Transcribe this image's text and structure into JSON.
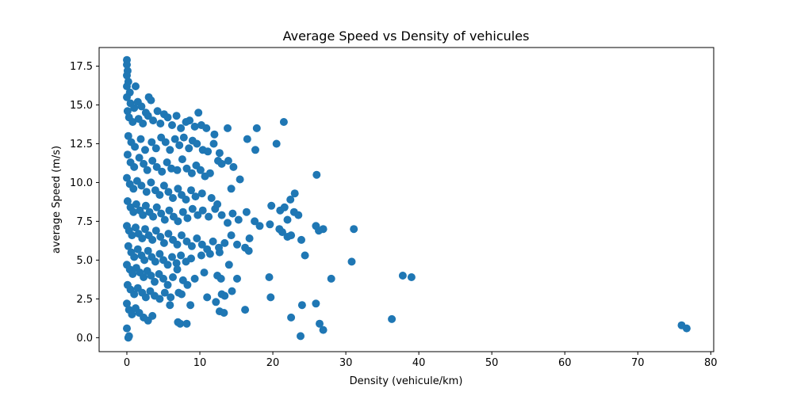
{
  "chart_data": {
    "type": "scatter",
    "title": "Average Speed vs Density of vehicules",
    "xlabel": "Density (vehicule/km)",
    "ylabel": "average Speed (m/s)",
    "xlim": [
      -3.8,
      80.4
    ],
    "ylim": [
      -0.9,
      18.7
    ],
    "x_ticks": [
      0,
      10,
      20,
      30,
      40,
      50,
      60,
      70,
      80
    ],
    "x_tick_labels": [
      "0",
      "10",
      "20",
      "30",
      "40",
      "50",
      "60",
      "70",
      "80"
    ],
    "y_ticks": [
      0.0,
      2.5,
      5.0,
      7.5,
      10.0,
      12.5,
      15.0,
      17.5
    ],
    "y_tick_labels": [
      "0.0",
      "2.5",
      "5.0",
      "7.5",
      "10.0",
      "12.5",
      "15.0",
      "17.5"
    ],
    "grid": false,
    "marker_color": "#1f77b4",
    "points": [
      [
        0.0,
        17.9
      ],
      [
        0.0,
        17.6
      ],
      [
        0.1,
        17.2
      ],
      [
        0.0,
        16.9
      ],
      [
        0.2,
        16.5
      ],
      [
        0.0,
        16.2
      ],
      [
        0.4,
        15.8
      ],
      [
        1.2,
        16.2
      ],
      [
        0.0,
        15.5
      ],
      [
        0.5,
        15.1
      ],
      [
        1.0,
        14.8
      ],
      [
        1.5,
        15.2
      ],
      [
        2.0,
        14.9
      ],
      [
        2.6,
        14.5
      ],
      [
        3.0,
        15.5
      ],
      [
        3.3,
        15.3
      ],
      [
        0.1,
        14.6
      ],
      [
        0.3,
        14.2
      ],
      [
        0.8,
        13.9
      ],
      [
        1.6,
        14.1
      ],
      [
        2.2,
        13.8
      ],
      [
        2.9,
        14.3
      ],
      [
        3.6,
        14.0
      ],
      [
        4.2,
        14.6
      ],
      [
        4.6,
        13.8
      ],
      [
        5.1,
        14.4
      ],
      [
        5.6,
        14.2
      ],
      [
        6.2,
        13.7
      ],
      [
        6.8,
        14.3
      ],
      [
        7.4,
        13.5
      ],
      [
        8.1,
        13.9
      ],
      [
        8.6,
        14.0
      ],
      [
        9.3,
        13.6
      ],
      [
        9.8,
        14.5
      ],
      [
        10.2,
        13.7
      ],
      [
        10.9,
        13.5
      ],
      [
        12.0,
        13.1
      ],
      [
        13.8,
        13.5
      ],
      [
        17.8,
        13.5
      ],
      [
        21.5,
        13.9
      ],
      [
        16.5,
        12.8
      ],
      [
        17.6,
        12.1
      ],
      [
        20.5,
        12.5
      ],
      [
        0.2,
        13.0
      ],
      [
        0.6,
        12.6
      ],
      [
        1.1,
        12.3
      ],
      [
        1.9,
        12.8
      ],
      [
        2.5,
        12.1
      ],
      [
        3.4,
        12.6
      ],
      [
        4.0,
        12.2
      ],
      [
        4.7,
        12.9
      ],
      [
        5.3,
        12.6
      ],
      [
        5.9,
        12.1
      ],
      [
        6.6,
        12.8
      ],
      [
        7.2,
        12.4
      ],
      [
        7.8,
        12.9
      ],
      [
        8.5,
        12.2
      ],
      [
        9.0,
        12.7
      ],
      [
        9.6,
        12.5
      ],
      [
        10.4,
        12.1
      ],
      [
        11.1,
        12.0
      ],
      [
        11.9,
        12.5
      ],
      [
        12.7,
        11.9
      ],
      [
        0.1,
        11.8
      ],
      [
        0.5,
        11.3
      ],
      [
        1.0,
        11.0
      ],
      [
        1.7,
        11.6
      ],
      [
        2.3,
        11.2
      ],
      [
        2.8,
        10.8
      ],
      [
        3.5,
        11.4
      ],
      [
        4.1,
        11.0
      ],
      [
        4.8,
        10.7
      ],
      [
        5.5,
        11.3
      ],
      [
        6.1,
        10.9
      ],
      [
        6.9,
        10.8
      ],
      [
        7.6,
        11.5
      ],
      [
        8.2,
        10.9
      ],
      [
        8.9,
        10.6
      ],
      [
        9.5,
        11.1
      ],
      [
        10.1,
        10.8
      ],
      [
        10.7,
        10.4
      ],
      [
        11.4,
        10.6
      ],
      [
        13.0,
        11.2
      ],
      [
        13.9,
        11.4
      ],
      [
        14.6,
        11.0
      ],
      [
        15.5,
        10.2
      ],
      [
        12.5,
        11.4
      ],
      [
        26.0,
        10.5
      ],
      [
        0.0,
        10.3
      ],
      [
        0.4,
        9.9
      ],
      [
        0.9,
        9.6
      ],
      [
        1.4,
        10.1
      ],
      [
        2.0,
        9.8
      ],
      [
        2.7,
        9.4
      ],
      [
        3.3,
        10.0
      ],
      [
        3.9,
        9.5
      ],
      [
        4.5,
        9.2
      ],
      [
        5.1,
        9.8
      ],
      [
        5.7,
        9.4
      ],
      [
        6.3,
        9.0
      ],
      [
        7.0,
        9.6
      ],
      [
        7.5,
        9.2
      ],
      [
        8.1,
        8.9
      ],
      [
        8.8,
        9.5
      ],
      [
        9.4,
        9.1
      ],
      [
        10.3,
        9.3
      ],
      [
        11.6,
        9.0
      ],
      [
        12.4,
        8.6
      ],
      [
        14.3,
        9.6
      ],
      [
        23.0,
        9.3
      ],
      [
        22.4,
        8.9
      ],
      [
        19.8,
        8.5
      ],
      [
        0.1,
        8.8
      ],
      [
        0.5,
        8.4
      ],
      [
        0.9,
        8.1
      ],
      [
        1.3,
        8.6
      ],
      [
        1.8,
        8.2
      ],
      [
        2.2,
        7.9
      ],
      [
        2.6,
        8.5
      ],
      [
        3.1,
        8.1
      ],
      [
        3.6,
        7.8
      ],
      [
        4.1,
        8.4
      ],
      [
        4.7,
        8.0
      ],
      [
        5.2,
        7.6
      ],
      [
        5.8,
        8.2
      ],
      [
        6.4,
        7.8
      ],
      [
        7.0,
        7.5
      ],
      [
        7.7,
        8.1
      ],
      [
        8.3,
        7.7
      ],
      [
        9.0,
        8.3
      ],
      [
        9.7,
        7.9
      ],
      [
        10.4,
        8.2
      ],
      [
        11.2,
        7.8
      ],
      [
        12.1,
        8.3
      ],
      [
        13.0,
        7.9
      ],
      [
        13.8,
        7.4
      ],
      [
        14.5,
        8.0
      ],
      [
        15.3,
        7.6
      ],
      [
        16.4,
        8.1
      ],
      [
        17.5,
        7.5
      ],
      [
        18.2,
        7.2
      ],
      [
        21.0,
        8.2
      ],
      [
        21.6,
        8.4
      ],
      [
        22.0,
        7.6
      ],
      [
        22.9,
        8.1
      ],
      [
        23.5,
        7.9
      ],
      [
        0.0,
        7.2
      ],
      [
        0.3,
        6.9
      ],
      [
        0.7,
        6.6
      ],
      [
        1.2,
        7.1
      ],
      [
        1.6,
        6.7
      ],
      [
        2.1,
        6.4
      ],
      [
        2.5,
        7.0
      ],
      [
        3.0,
        6.6
      ],
      [
        3.5,
        6.3
      ],
      [
        4.0,
        6.9
      ],
      [
        4.6,
        6.5
      ],
      [
        5.1,
        6.1
      ],
      [
        5.7,
        6.7
      ],
      [
        6.3,
        6.3
      ],
      [
        6.9,
        6.0
      ],
      [
        7.5,
        6.6
      ],
      [
        8.2,
        6.2
      ],
      [
        8.9,
        5.9
      ],
      [
        9.6,
        6.4
      ],
      [
        10.3,
        6.0
      ],
      [
        11.0,
        5.7
      ],
      [
        11.8,
        6.2
      ],
      [
        12.6,
        5.8
      ],
      [
        13.4,
        6.1
      ],
      [
        14.3,
        6.6
      ],
      [
        15.1,
        6.0
      ],
      [
        16.8,
        6.4
      ],
      [
        16.2,
        5.8
      ],
      [
        16.7,
        5.6
      ],
      [
        19.6,
        7.3
      ],
      [
        20.9,
        7.0
      ],
      [
        21.3,
        6.8
      ],
      [
        22.0,
        6.5
      ],
      [
        22.5,
        6.6
      ],
      [
        23.9,
        6.3
      ],
      [
        25.9,
        7.2
      ],
      [
        26.3,
        6.9
      ],
      [
        26.9,
        7.0
      ],
      [
        31.1,
        7.0
      ],
      [
        24.4,
        5.3
      ],
      [
        0.2,
        5.9
      ],
      [
        0.6,
        5.5
      ],
      [
        1.0,
        5.2
      ],
      [
        1.5,
        5.7
      ],
      [
        2.0,
        5.3
      ],
      [
        2.4,
        5.0
      ],
      [
        2.9,
        5.6
      ],
      [
        3.4,
        5.2
      ],
      [
        3.9,
        4.9
      ],
      [
        4.5,
        5.4
      ],
      [
        5.0,
        5.0
      ],
      [
        5.6,
        4.7
      ],
      [
        6.2,
        5.2
      ],
      [
        6.8,
        4.8
      ],
      [
        7.4,
        5.3
      ],
      [
        8.1,
        4.9
      ],
      [
        8.8,
        5.1
      ],
      [
        10.2,
        5.3
      ],
      [
        11.4,
        5.4
      ],
      [
        12.7,
        5.5
      ],
      [
        14.0,
        4.7
      ],
      [
        0.0,
        4.7
      ],
      [
        0.4,
        4.4
      ],
      [
        0.8,
        4.1
      ],
      [
        1.3,
        4.5
      ],
      [
        1.8,
        4.2
      ],
      [
        2.3,
        3.9
      ],
      [
        2.8,
        4.3
      ],
      [
        3.3,
        4.0
      ],
      [
        3.8,
        3.6
      ],
      [
        4.4,
        4.1
      ],
      [
        5.0,
        3.8
      ],
      [
        5.6,
        3.4
      ],
      [
        6.3,
        3.9
      ],
      [
        6.9,
        4.4
      ],
      [
        7.7,
        3.7
      ],
      [
        8.3,
        3.4
      ],
      [
        9.3,
        3.8
      ],
      [
        10.6,
        4.2
      ],
      [
        12.4,
        4.0
      ],
      [
        12.9,
        3.8
      ],
      [
        15.1,
        3.8
      ],
      [
        19.5,
        3.9
      ],
      [
        30.8,
        4.9
      ],
      [
        28.0,
        3.8
      ],
      [
        37.8,
        4.0
      ],
      [
        39.0,
        3.9
      ],
      [
        0.1,
        3.4
      ],
      [
        0.5,
        3.1
      ],
      [
        1.0,
        2.8
      ],
      [
        1.5,
        3.2
      ],
      [
        2.1,
        2.9
      ],
      [
        2.6,
        2.6
      ],
      [
        3.2,
        3.0
      ],
      [
        3.8,
        2.7
      ],
      [
        4.5,
        2.5
      ],
      [
        5.2,
        2.9
      ],
      [
        6.0,
        2.6
      ],
      [
        7.1,
        2.9
      ],
      [
        7.5,
        2.8
      ],
      [
        11.0,
        2.6
      ],
      [
        12.2,
        2.3
      ],
      [
        13.0,
        2.8
      ],
      [
        13.4,
        2.7
      ],
      [
        14.4,
        3.0
      ],
      [
        12.7,
        1.7
      ],
      [
        13.3,
        1.6
      ],
      [
        16.2,
        1.8
      ],
      [
        19.7,
        2.6
      ],
      [
        24.0,
        2.1
      ],
      [
        25.9,
        2.2
      ],
      [
        0.0,
        2.2
      ],
      [
        0.3,
        1.8
      ],
      [
        0.7,
        1.5
      ],
      [
        1.2,
        1.9
      ],
      [
        1.7,
        1.6
      ],
      [
        2.3,
        1.3
      ],
      [
        2.9,
        1.1
      ],
      [
        3.5,
        1.4
      ],
      [
        5.9,
        2.1
      ],
      [
        7.0,
        1.0
      ],
      [
        7.3,
        0.9
      ],
      [
        8.2,
        0.9
      ],
      [
        8.7,
        2.1
      ],
      [
        22.5,
        1.3
      ],
      [
        36.3,
        1.2
      ],
      [
        26.4,
        0.9
      ],
      [
        26.9,
        0.5
      ],
      [
        23.8,
        0.1
      ],
      [
        0.0,
        0.6
      ],
      [
        0.2,
        0.0
      ],
      [
        0.3,
        0.1
      ],
      [
        76.0,
        0.8
      ],
      [
        76.7,
        0.6
      ]
    ]
  }
}
